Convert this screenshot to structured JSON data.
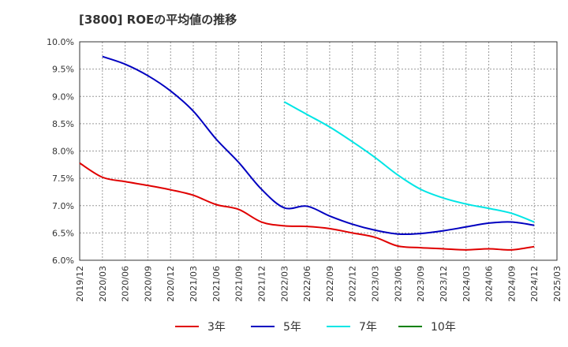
{
  "chart_data": {
    "type": "line",
    "title": "[3800]  ROEの平均値の推移",
    "xlabel": "",
    "ylabel": "",
    "categories": [
      "2019/12",
      "2020/03",
      "2020/06",
      "2020/09",
      "2020/12",
      "2021/03",
      "2021/06",
      "2021/09",
      "2021/12",
      "2022/03",
      "2022/06",
      "2022/09",
      "2022/12",
      "2023/03",
      "2023/06",
      "2023/09",
      "2023/12",
      "2024/03",
      "2024/06",
      "2024/09",
      "2024/12",
      "2025/03"
    ],
    "y_ticks": [
      "6.0%",
      "6.5%",
      "7.0%",
      "7.5%",
      "8.0%",
      "8.5%",
      "9.0%",
      "9.5%",
      "10.0%"
    ],
    "ylim": [
      6.0,
      10.0
    ],
    "grid": true,
    "legend_position": "bottom",
    "series": [
      {
        "name": "3年",
        "color": "#e00000",
        "values": [
          7.78,
          7.52,
          7.44,
          7.37,
          7.29,
          7.19,
          7.02,
          6.93,
          6.7,
          6.63,
          6.62,
          6.58,
          6.5,
          6.42,
          6.26,
          6.23,
          6.21,
          6.19,
          6.21,
          6.19,
          6.25,
          null
        ]
      },
      {
        "name": "5年",
        "color": "#0000c0",
        "values": [
          null,
          9.73,
          9.59,
          9.38,
          9.1,
          8.73,
          8.22,
          7.79,
          7.3,
          6.96,
          6.99,
          6.81,
          6.66,
          6.55,
          6.48,
          6.49,
          6.54,
          6.61,
          6.68,
          6.7,
          6.64,
          null
        ]
      },
      {
        "name": "7年",
        "color": "#00e5e5",
        "values": [
          null,
          null,
          null,
          null,
          null,
          null,
          null,
          null,
          null,
          8.9,
          8.67,
          8.44,
          8.17,
          7.88,
          7.56,
          7.3,
          7.14,
          7.03,
          6.95,
          6.86,
          6.7,
          null
        ]
      },
      {
        "name": "10年",
        "color": "#008000",
        "values": [
          null,
          null,
          null,
          null,
          null,
          null,
          null,
          null,
          null,
          null,
          null,
          null,
          null,
          null,
          null,
          null,
          null,
          null,
          null,
          null,
          null,
          null
        ]
      }
    ]
  }
}
